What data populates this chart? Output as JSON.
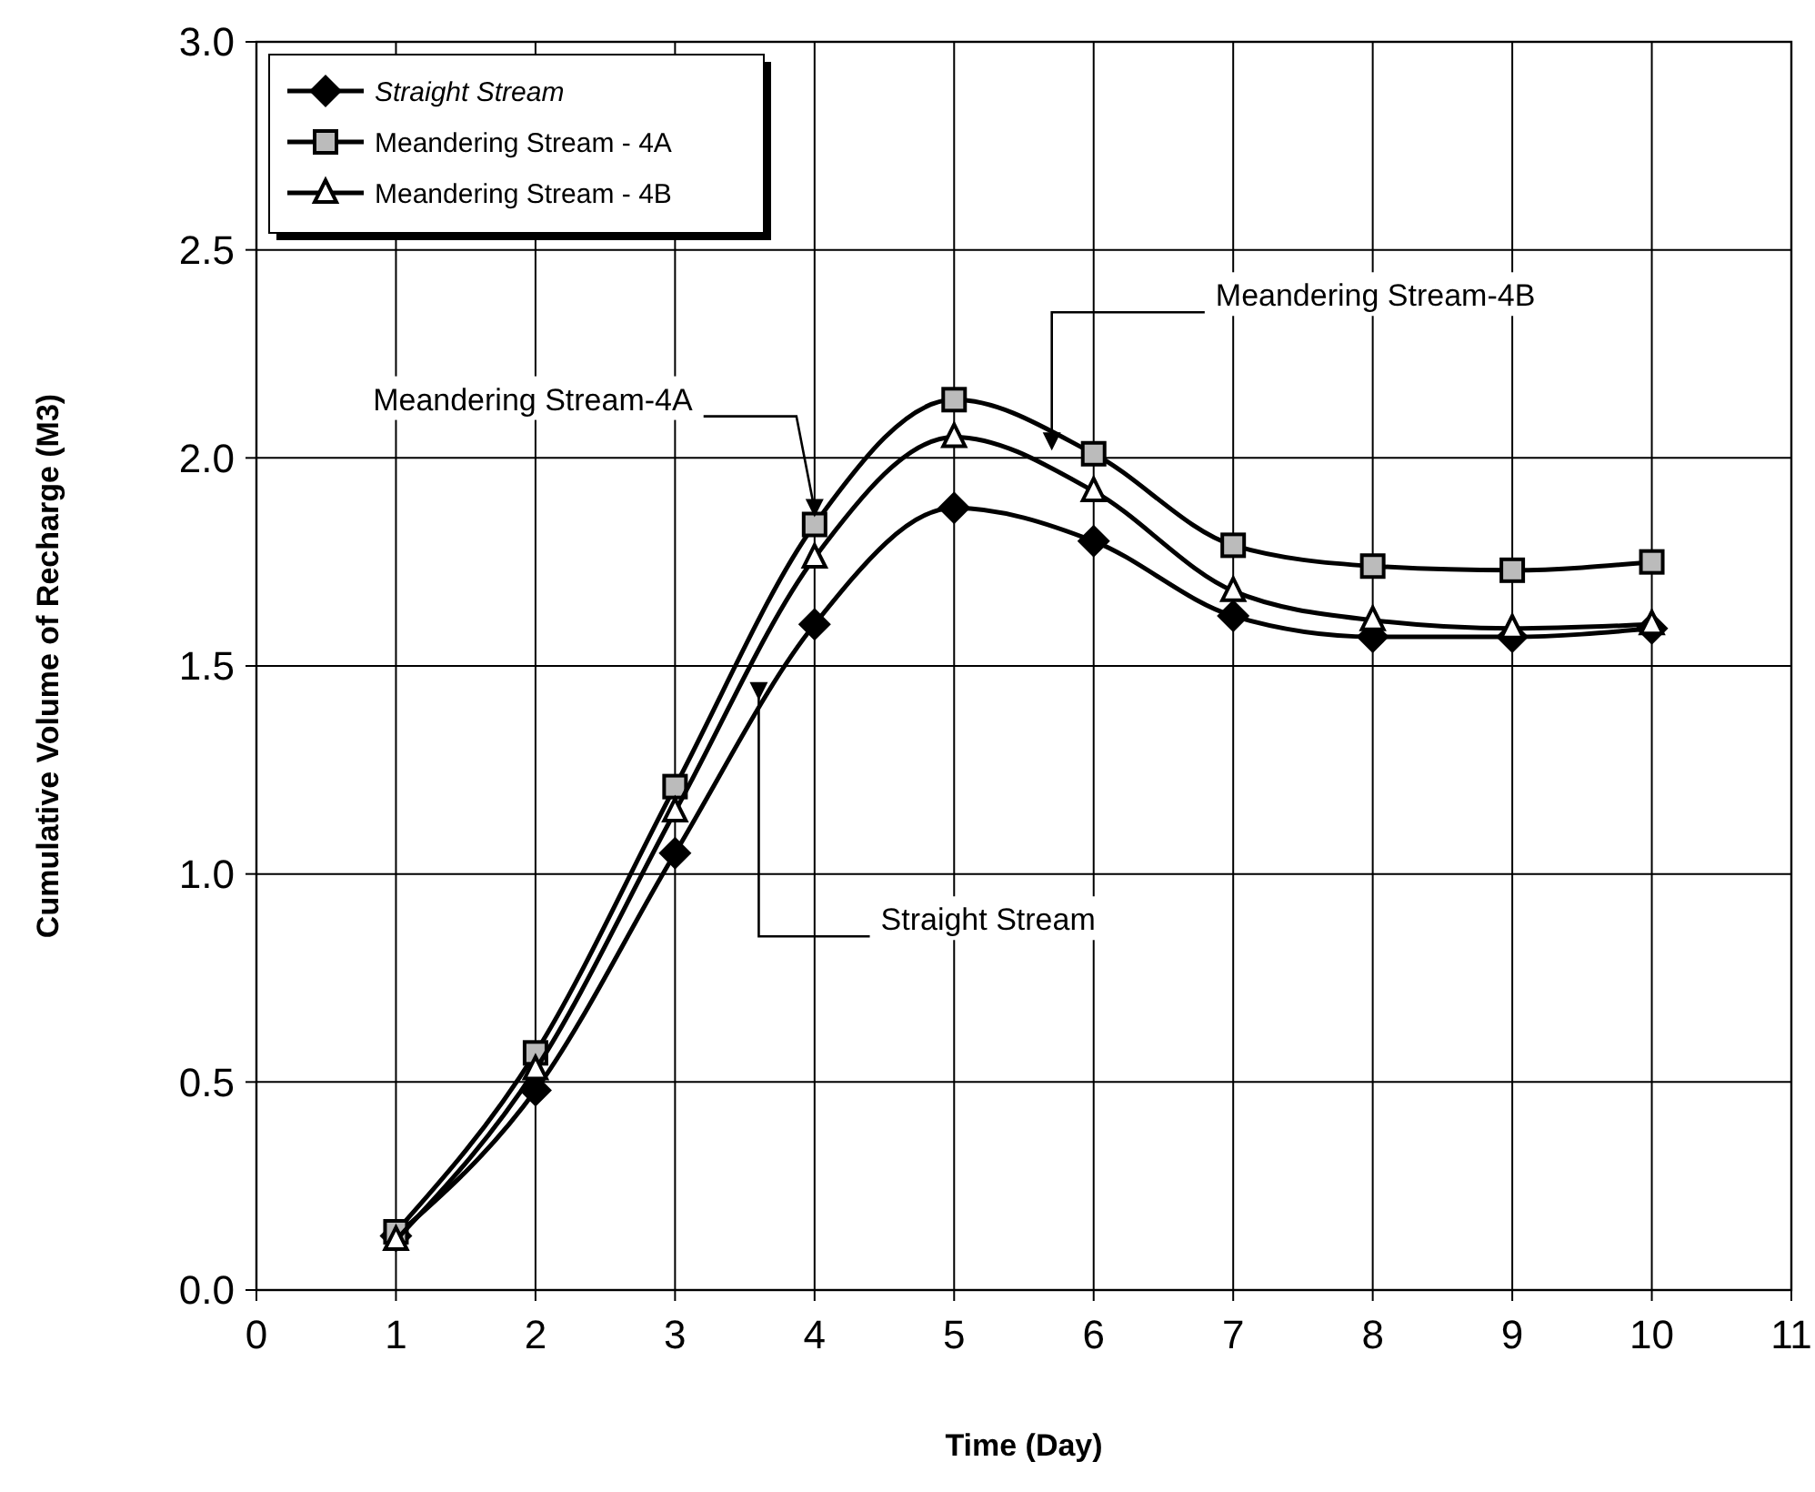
{
  "chart_data": {
    "type": "line",
    "xlabel": "Time (Day)",
    "ylabel": "Cumulative Volume of Recharge (M3)",
    "x": [
      1,
      2,
      3,
      4,
      5,
      6,
      7,
      8,
      9,
      10
    ],
    "series": [
      {
        "name": "Straight Stream",
        "color": "#000000",
        "marker": "diamond",
        "values": [
          0.13,
          0.48,
          1.05,
          1.6,
          1.88,
          1.8,
          1.62,
          1.57,
          1.57,
          1.59
        ]
      },
      {
        "name": "Meandering Stream - 4A",
        "color": "#000000",
        "marker": "square",
        "values": [
          0.14,
          0.57,
          1.21,
          1.84,
          2.14,
          2.01,
          1.79,
          1.74,
          1.73,
          1.75
        ]
      },
      {
        "name": "Meandering Stream - 4B",
        "color": "#000000",
        "marker": "triangle",
        "values": [
          0.12,
          0.53,
          1.15,
          1.76,
          2.05,
          1.92,
          1.68,
          1.61,
          1.59,
          1.6
        ]
      }
    ],
    "xlim": [
      0,
      11
    ],
    "xticks": [
      0,
      1,
      2,
      3,
      4,
      5,
      6,
      7,
      8,
      9,
      10,
      11
    ],
    "ylim": [
      0,
      3
    ],
    "yticks": [
      {
        "value": 0,
        "label": "0.0"
      },
      {
        "value": 0.5,
        "label": "0.5"
      },
      {
        "value": 1,
        "label": "1.0"
      },
      {
        "value": 1.5,
        "label": "1.5"
      },
      {
        "value": 2,
        "label": "2.0"
      },
      {
        "value": 2.5,
        "label": "2.5"
      },
      {
        "value": 3,
        "label": "3.0"
      }
    ],
    "grid": true,
    "legend": "top left",
    "line_style": "solid",
    "annotations": [
      {
        "text": "Meandering Stream-4A",
        "x": 4,
        "y": 1.84
      },
      {
        "text": "Meandering Stream-4B",
        "x": 5.7,
        "y": 2.0
      },
      {
        "text": "Straight Stream",
        "x": 3.6,
        "y": 1.4
      }
    ]
  }
}
